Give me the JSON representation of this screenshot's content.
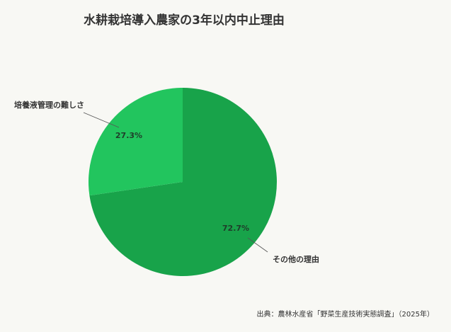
{
  "chart_data": {
    "type": "pie",
    "title": "水耕栽培導入農家の3年以内中止理由",
    "slices": [
      {
        "label": "その他の理由",
        "value": 72.7,
        "value_label": "72.7%",
        "color": "#18a34a"
      },
      {
        "label": "培養液管理の難しさ",
        "value": 27.3,
        "value_label": "27.3%",
        "color": "#22c55e"
      }
    ],
    "start_angle": "12 o'clock",
    "direction": "clockwise",
    "source": "出典：農林水産省「野菜生産技術実態調査」（2025年）"
  }
}
